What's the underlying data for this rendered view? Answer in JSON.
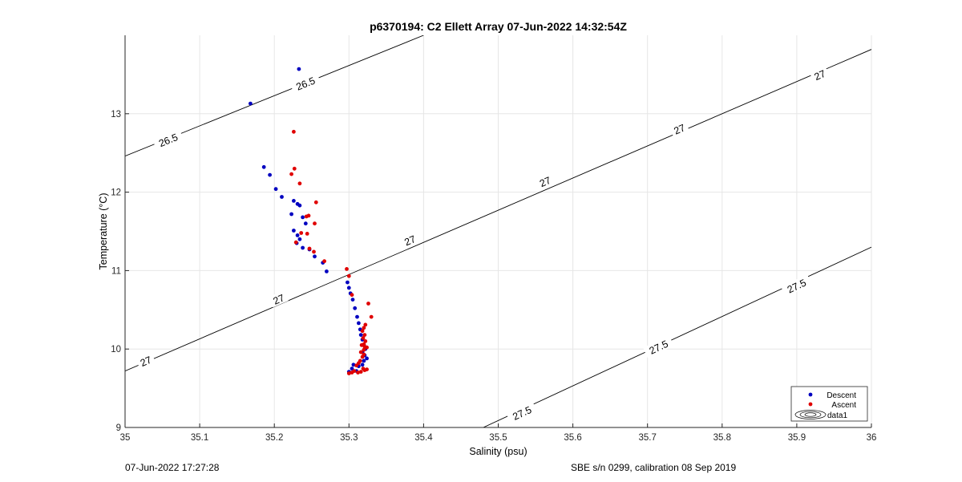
{
  "footer": {
    "timestamp": "07-Jun-2022 17:27:28",
    "calibration": "SBE s/n 0299, calibration 08 Sep 2019"
  },
  "chart_data": {
    "type": "scatter",
    "title": "p6370194: C2 Ellett Array 07-Jun-2022 14:32:54Z",
    "xlabel": "Salinity (psu)",
    "ylabel": "Temperature (°C)",
    "xlim": [
      35,
      36
    ],
    "ylim": [
      9,
      14
    ],
    "xticks": [
      "35",
      "35.1",
      "35.2",
      "35.3",
      "35.4",
      "35.5",
      "35.6",
      "35.7",
      "35.8",
      "35.9",
      "36"
    ],
    "yticks": [
      "9",
      "10",
      "11",
      "12",
      "13"
    ],
    "grid": true,
    "legend_position": "bottom-right",
    "legend": [
      "Descent",
      "Ascent",
      "data1"
    ],
    "colors": {
      "descent": "#0000c0",
      "ascent": "#e00000",
      "contour": "#000000",
      "grid": "#e6e6e6"
    },
    "contours": [
      {
        "level": "26.5",
        "points": [
          [
            35.0,
            12.46
          ],
          [
            35.4,
            14.0
          ]
        ]
      },
      {
        "level": "27",
        "points": [
          [
            35.0,
            9.72
          ],
          [
            36.0,
            13.82
          ]
        ]
      },
      {
        "level": "27.5",
        "points": [
          [
            35.48,
            9.0
          ],
          [
            36.0,
            11.3
          ]
        ]
      }
    ],
    "contour_labels": [
      {
        "text": "26.5",
        "x": 35.058,
        "y": 12.66
      },
      {
        "text": "26.5",
        "x": 35.242,
        "y": 13.38
      },
      {
        "text": "27",
        "x": 35.028,
        "y": 9.84
      },
      {
        "text": "27",
        "x": 35.206,
        "y": 10.63
      },
      {
        "text": "27",
        "x": 35.382,
        "y": 11.38
      },
      {
        "text": "27",
        "x": 35.563,
        "y": 12.13
      },
      {
        "text": "27",
        "x": 35.743,
        "y": 12.8
      },
      {
        "text": "27",
        "x": 35.931,
        "y": 13.49
      },
      {
        "text": "27.5",
        "x": 35.532,
        "y": 9.18
      },
      {
        "text": "27.5",
        "x": 35.715,
        "y": 10.02
      },
      {
        "text": "27.5",
        "x": 35.9,
        "y": 10.8
      }
    ],
    "series": [
      {
        "name": "Descent",
        "x": [
          35.233,
          35.168,
          35.186,
          35.194,
          35.202,
          35.21,
          35.226,
          35.231,
          35.234,
          35.223,
          35.238,
          35.242,
          35.226,
          35.231,
          35.234,
          35.23,
          35.238,
          35.247,
          35.254,
          35.265,
          35.27,
          35.298,
          35.3,
          35.302,
          35.305,
          35.308,
          35.311,
          35.313,
          35.315,
          35.316,
          35.318,
          35.32,
          35.322,
          35.318,
          35.321,
          35.324,
          35.32,
          35.318,
          35.313,
          35.306,
          35.304,
          35.31,
          35.3
        ],
        "y": [
          13.57,
          13.13,
          12.32,
          12.22,
          12.04,
          11.94,
          11.89,
          11.85,
          11.83,
          11.72,
          11.68,
          11.6,
          11.51,
          11.45,
          11.4,
          11.35,
          11.29,
          11.27,
          11.18,
          11.1,
          10.99,
          10.85,
          10.78,
          10.71,
          10.63,
          10.52,
          10.41,
          10.33,
          10.25,
          10.18,
          10.12,
          10.05,
          10.0,
          9.96,
          9.92,
          9.88,
          9.85,
          9.8,
          9.78,
          9.8,
          9.75,
          9.72,
          9.71
        ]
      },
      {
        "name": "Ascent",
        "x": [
          35.226,
          35.227,
          35.223,
          35.234,
          35.256,
          35.246,
          35.243,
          35.254,
          35.236,
          35.244,
          35.229,
          35.247,
          35.253,
          35.267,
          35.297,
          35.3,
          35.304,
          35.326,
          35.33,
          35.322,
          35.32,
          35.318,
          35.321,
          35.319,
          35.322,
          35.32,
          35.317,
          35.321,
          35.324,
          35.32,
          35.316,
          35.32,
          35.318,
          35.315,
          35.313,
          35.31,
          35.307,
          35.304,
          35.3,
          35.312,
          35.316,
          35.321,
          35.324,
          35.319
        ],
        "y": [
          12.77,
          12.3,
          12.23,
          12.11,
          11.87,
          11.7,
          11.69,
          11.6,
          11.48,
          11.47,
          11.36,
          11.28,
          11.24,
          11.12,
          11.02,
          10.93,
          10.69,
          10.58,
          10.41,
          10.31,
          10.27,
          10.23,
          10.18,
          10.14,
          10.1,
          10.06,
          10.05,
          10.03,
          10.02,
          9.99,
          9.96,
          9.93,
          9.9,
          9.85,
          9.82,
          9.79,
          9.72,
          9.7,
          9.69,
          9.7,
          9.71,
          9.73,
          9.74,
          9.75
        ]
      }
    ]
  }
}
